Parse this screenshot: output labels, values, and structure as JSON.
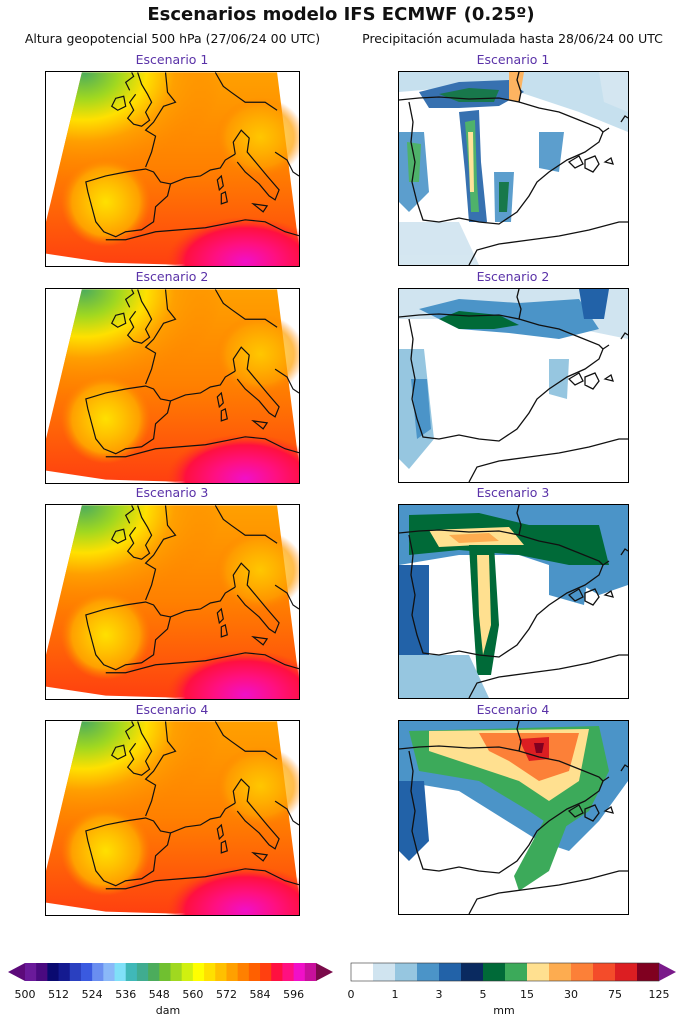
{
  "title": "Escenarios modelo IFS ECMWF (0.25º)",
  "left_column_title": "Altura geopotencial 500 hPa (27/06/24 00 UTC)",
  "right_column_title": "Precipitación acumulada hasta 28/06/24 00 UTC",
  "scenarios": [
    {
      "label": "Escenario 1"
    },
    {
      "label": "Escenario 2"
    },
    {
      "label": "Escenario 3"
    },
    {
      "label": "Escenario 4"
    }
  ],
  "geopotential_colorbar": {
    "unit": "dam",
    "ticks": [
      "500",
      "512",
      "524",
      "536",
      "548",
      "560",
      "572",
      "584",
      "596"
    ],
    "under_color": "#5c0a7a",
    "over_color": "#7a0a4a",
    "colors": [
      "#6a1a9a",
      "#4a0a80",
      "#0a0a70",
      "#141a90",
      "#2a40c0",
      "#3a5ae0",
      "#6a8ef0",
      "#8ab8f8",
      "#80e0f8",
      "#40b8b8",
      "#40ac90",
      "#4cac5c",
      "#70c030",
      "#a0d820",
      "#d0f010",
      "#ffff00",
      "#ffe000",
      "#ffc000",
      "#ffa000",
      "#ff8000",
      "#ff6000",
      "#ff4010",
      "#ff1040",
      "#ff1080",
      "#f010c8",
      "#c8109c"
    ]
  },
  "precip_colorbar": {
    "unit": "mm",
    "ticks": [
      "0",
      "1",
      "3",
      "5",
      "15",
      "30",
      "75",
      "125"
    ],
    "over_color": "#7a1a8a",
    "colors": [
      "#ffffff",
      "#d0e4f0",
      "#96c6e0",
      "#4b94c8",
      "#2262a8",
      "#0a2a60",
      "#006a38",
      "#3caa5a",
      "#ffe090",
      "#fdac50",
      "#fc8038",
      "#f44c2a",
      "#dc1e22",
      "#800020"
    ]
  }
}
